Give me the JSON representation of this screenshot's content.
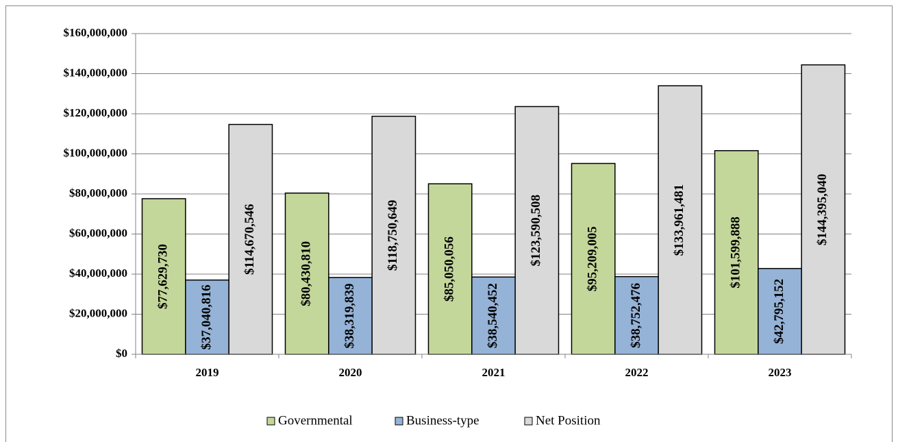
{
  "chart_data": {
    "type": "bar",
    "categories": [
      "2019",
      "2020",
      "2021",
      "2022",
      "2023"
    ],
    "series": [
      {
        "name": "Governmental",
        "color": "#c4d79b",
        "values": [
          77629730,
          80430810,
          85050056,
          95209005,
          101599888
        ],
        "value_labels": [
          "$77,629,730",
          "$80,430,810",
          "$85,050,056",
          "$95,209,005",
          "$101,599,888"
        ]
      },
      {
        "name": "Business-type",
        "color": "#95b3d7",
        "values": [
          37040816,
          38319839,
          38540452,
          38752476,
          42795152
        ],
        "value_labels": [
          "$37,040,816",
          "$38,319,839",
          "$38,540,452",
          "$38,752,476",
          "$42,795,152"
        ]
      },
      {
        "name": "Net Position",
        "color": "#d9d9d9",
        "values": [
          114670546,
          118750649,
          123590508,
          133961481,
          144395040
        ],
        "value_labels": [
          "$114,670,546",
          "$118,750,649",
          "$123,590,508",
          "$133,961,481",
          "$144,395,040"
        ]
      }
    ],
    "ylim": [
      0,
      160000000
    ],
    "yticks": [
      {
        "value": 0,
        "label": "$0"
      },
      {
        "value": 20000000,
        "label": "$20,000,000"
      },
      {
        "value": 40000000,
        "label": "$40,000,000"
      },
      {
        "value": 60000000,
        "label": "$60,000,000"
      },
      {
        "value": 80000000,
        "label": "$80,000,000"
      },
      {
        "value": 100000000,
        "label": "$100,000,000"
      },
      {
        "value": 120000000,
        "label": "$120,000,000"
      },
      {
        "value": 140000000,
        "label": "$140,000,000"
      },
      {
        "value": 160000000,
        "label": "$160,000,000"
      }
    ],
    "grid": true,
    "legend": "bottom"
  }
}
